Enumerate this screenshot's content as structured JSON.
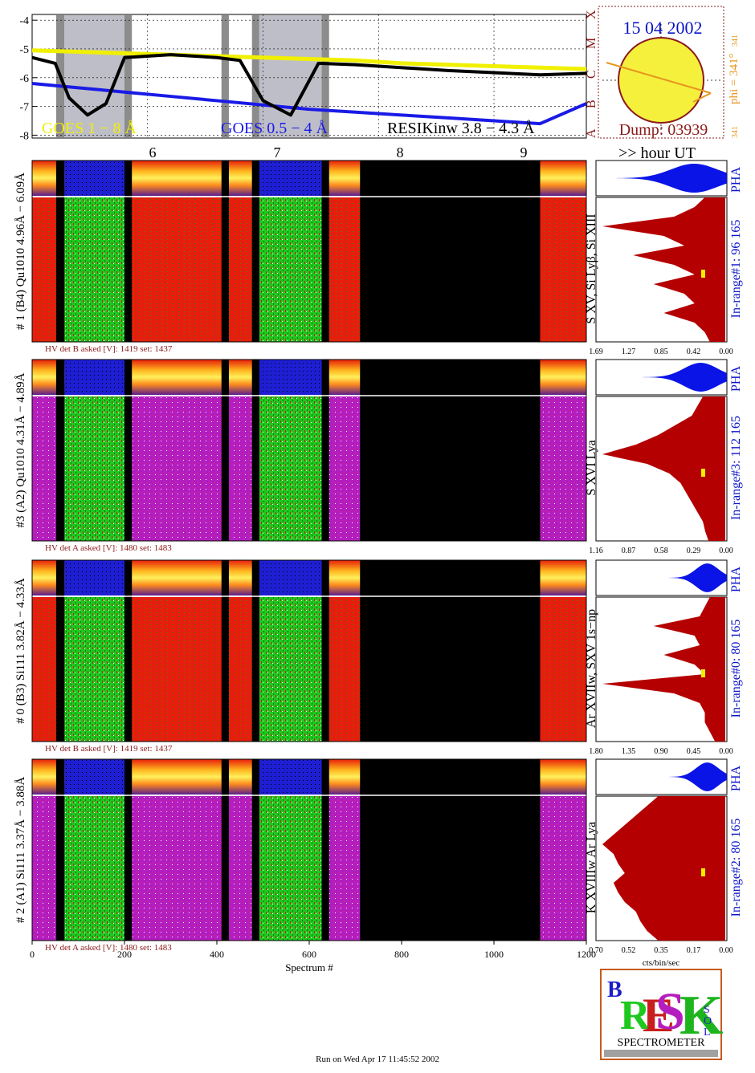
{
  "date": "15 04 2002",
  "phi_label": "phi = 341°",
  "phi_sub": "341",
  "phi_small": "341",
  "dump_label": "Dump: 03939",
  "hour_label": ">> hour UT",
  "footer": "Run on Wed Apr 17 11:45:52 2002",
  "logo_text": "SPECTROMETER",
  "colors": {
    "goes_long": "#f0f000",
    "goes_short": "#1a1ae6",
    "resik": "#000000",
    "pha": "#0a14e6",
    "spectrum": "#b40000",
    "maroon": "#8b1a1a",
    "orange": "#e6961e",
    "panel_red": "#e61e0a",
    "panel_green": "#1ec81e",
    "panel_magenta": "#b41ebe",
    "panel_blue": "#1e1ed2"
  },
  "chart_data": [
    {
      "type": "line",
      "title": "",
      "yticks": [
        "-4",
        "-5",
        "-6",
        "-7",
        "-8"
      ],
      "ylim": [
        -8.1,
        -3.8
      ],
      "xlabels": [
        "6",
        "7",
        "8",
        "9"
      ],
      "flare_classes": [
        "A",
        "B",
        "C",
        "M",
        "X"
      ],
      "series": [
        {
          "name": "GOES 1 − 8 Å",
          "x": [
            0,
            100,
            200,
            300,
            400,
            500,
            600,
            700,
            800,
            900,
            1000,
            1100,
            1200
          ],
          "values": [
            -5.05,
            -5.1,
            -5.15,
            -5.2,
            -5.25,
            -5.3,
            -5.35,
            -5.4,
            -5.5,
            -5.55,
            -5.6,
            -5.65,
            -5.7
          ]
        },
        {
          "name": "GOES 0.5 − 4 Å",
          "x": [
            0,
            100,
            200,
            300,
            400,
            500,
            600,
            700,
            800,
            900,
            1000,
            1100,
            1200
          ],
          "values": [
            -6.2,
            -6.35,
            -6.5,
            -6.65,
            -6.8,
            -6.95,
            -7.1,
            -7.2,
            -7.3,
            -7.4,
            -7.5,
            -7.6,
            -6.9
          ]
        },
        {
          "name": "RESIKinw 3.8 − 4.3 Å",
          "x": [
            0,
            50,
            80,
            120,
            160,
            200,
            300,
            400,
            450,
            500,
            560,
            620,
            700,
            900,
            1100,
            1200
          ],
          "values": [
            -5.3,
            -5.5,
            -6.7,
            -7.3,
            -6.9,
            -5.3,
            -5.2,
            -5.3,
            -5.4,
            -6.8,
            -7.3,
            -5.5,
            -5.55,
            -5.75,
            -5.9,
            -5.85
          ]
        }
      ]
    },
    {
      "type": "heatmap",
      "ylabel": "# 1 (B4) Qu1010 4.96Å − 6.09Å",
      "hv": "HV det B asked [V]:  1419 set:  1437",
      "lines_label": "S XV, Si Lyβ, Si XIII",
      "in_range": "In-range#1:  96 165",
      "pha": "PHA",
      "profile_ticks": [
        "1.69",
        "1.27",
        "0.85",
        "0.42",
        "0.00"
      ],
      "profile": [
        0.2,
        0.3,
        0.5,
        1.2,
        0.6,
        0.4,
        0.9,
        0.5,
        0.3,
        0.7,
        0.4,
        0.3,
        0.6,
        0.3,
        0.2,
        0.15
      ]
    },
    {
      "type": "heatmap",
      "ylabel": "#3 (A2) Qu1010  4.31Å − 4.89Å",
      "hv": "HV det A asked [V]:  1480 set:  1483",
      "lines_label": "S XVI Lya",
      "in_range": "In-range#3:  112 165",
      "pha": "PHA",
      "profile_ticks": [
        "1.16",
        "0.87",
        "0.58",
        "0.29",
        "0.00"
      ],
      "profile": [
        0.2,
        0.25,
        0.3,
        0.45,
        0.6,
        0.8,
        1.1,
        0.7,
        0.5,
        0.4,
        0.35,
        0.3,
        0.25,
        0.2,
        0.18,
        0.15
      ]
    },
    {
      "type": "heatmap",
      "ylabel": "# 0 (B3) Si111  3.82Å − 4.33Å",
      "hv": "HV det B asked [V]:  1419 set:  1437",
      "lines_label": "Ar XVIIw,  SXV 1s−np",
      "in_range": "In-range#0:  80 165",
      "pha": "PHA",
      "profile_ticks": [
        "1.80",
        "1.35",
        "0.90",
        "0.45",
        "0.00"
      ],
      "profile": [
        0.15,
        0.2,
        0.25,
        0.7,
        0.3,
        0.25,
        0.6,
        0.3,
        0.2,
        1.2,
        0.5,
        0.25,
        0.2,
        0.2,
        0.15,
        0.1
      ]
    },
    {
      "type": "heatmap",
      "ylabel": "# 2 (A1) Si111  3.37Å − 3.88Å",
      "hv": "HV det A asked [V]:  1480 set:  1483",
      "lines_label": "K XVIIIw  Ar Lya",
      "in_range": "In-range#2:  80 165",
      "pha": "PHA",
      "profile_ticks": [
        "0.70",
        "0.52",
        "0.35",
        "0.17",
        "0.00"
      ],
      "profile": [
        0.3,
        0.35,
        0.4,
        0.45,
        0.5,
        0.55,
        0.5,
        0.48,
        0.45,
        0.5,
        0.48,
        0.45,
        0.4,
        0.38,
        0.35,
        0.3
      ],
      "xlabel": "Spectrum #",
      "xticks": [
        "0",
        "200",
        "400",
        "600",
        "800",
        "1000",
        "1200"
      ],
      "profile_xlabel": "cts/bin/sec"
    }
  ]
}
